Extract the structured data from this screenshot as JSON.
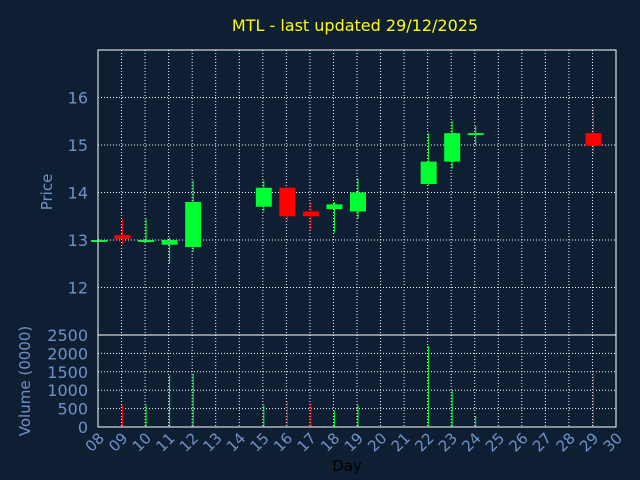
{
  "chart_data": [
    {
      "type": "candlestick",
      "title": "MTL - last updated 29/12/2025",
      "ylabel": "Price",
      "xlabel": "",
      "ylim": [
        11,
        17
      ],
      "yticks": [
        12,
        13,
        14,
        15,
        16
      ],
      "grid": true,
      "colors": {
        "up": "#00ff33",
        "down": "#ff0000",
        "title": "#ffff00",
        "axis_text": "#6f93c8",
        "grid": "#ffffff",
        "background": "#0f1f33"
      },
      "candles": [
        {
          "day": 8,
          "open": 13.0,
          "close": 13.0,
          "high": 13.02,
          "low": 12.98,
          "dir": "up"
        },
        {
          "day": 9,
          "open": 13.1,
          "close": 13.02,
          "high": 13.45,
          "low": 12.9,
          "dir": "down"
        },
        {
          "day": 10,
          "open": 13.0,
          "close": 13.0,
          "high": 13.45,
          "low": 12.95,
          "dir": "up"
        },
        {
          "day": 11,
          "open": 12.9,
          "close": 13.0,
          "high": 13.05,
          "low": 12.5,
          "dir": "up"
        },
        {
          "day": 12,
          "open": 12.85,
          "close": 13.8,
          "high": 14.25,
          "low": 12.75,
          "dir": "up"
        },
        {
          "day": 15,
          "open": 13.7,
          "close": 14.1,
          "high": 14.25,
          "low": 13.6,
          "dir": "up"
        },
        {
          "day": 16,
          "open": 14.1,
          "close": 13.5,
          "high": 14.1,
          "low": 13.4,
          "dir": "down"
        },
        {
          "day": 17,
          "open": 13.6,
          "close": 13.5,
          "high": 13.8,
          "low": 13.2,
          "dir": "down"
        },
        {
          "day": 18,
          "open": 13.65,
          "close": 13.75,
          "high": 13.8,
          "low": 13.15,
          "dir": "up"
        },
        {
          "day": 19,
          "open": 13.6,
          "close": 14.0,
          "high": 14.3,
          "low": 13.45,
          "dir": "up"
        },
        {
          "day": 22,
          "open": 14.18,
          "close": 14.65,
          "high": 15.25,
          "low": 14.15,
          "dir": "up"
        },
        {
          "day": 23,
          "open": 14.65,
          "close": 15.25,
          "high": 15.5,
          "low": 14.5,
          "dir": "up"
        },
        {
          "day": 24,
          "open": 15.25,
          "close": 15.25,
          "high": 15.4,
          "low": 15.0,
          "dir": "up"
        },
        {
          "day": 29,
          "open": 15.25,
          "close": 14.98,
          "high": 15.8,
          "low": 14.8,
          "dir": "down"
        }
      ]
    },
    {
      "type": "bar",
      "ylabel": "Volume (0000)",
      "xlabel": "Day",
      "ylim": [
        0,
        2500
      ],
      "yticks": [
        0,
        500,
        1000,
        1500,
        2000,
        2500
      ],
      "xticks": [
        "08",
        "09",
        "10",
        "11",
        "12",
        "13",
        "14",
        "15",
        "16",
        "17",
        "18",
        "19",
        "20",
        "21",
        "22",
        "23",
        "24",
        "25",
        "26",
        "27",
        "28",
        "29",
        "30"
      ],
      "bars": [
        {
          "day": 9,
          "value": 600,
          "dir": "down"
        },
        {
          "day": 10,
          "value": 600,
          "dir": "up"
        },
        {
          "day": 11,
          "value": 1400,
          "dir": "up"
        },
        {
          "day": 12,
          "value": 1450,
          "dir": "up"
        },
        {
          "day": 15,
          "value": 600,
          "dir": "up"
        },
        {
          "day": 16,
          "value": 700,
          "dir": "down"
        },
        {
          "day": 17,
          "value": 650,
          "dir": "down"
        },
        {
          "day": 18,
          "value": 450,
          "dir": "up"
        },
        {
          "day": 19,
          "value": 600,
          "dir": "up"
        },
        {
          "day": 22,
          "value": 2200,
          "dir": "up"
        },
        {
          "day": 23,
          "value": 1000,
          "dir": "up"
        },
        {
          "day": 24,
          "value": 300,
          "dir": "up"
        },
        {
          "day": 29,
          "value": 1500,
          "dir": "down"
        }
      ]
    }
  ]
}
